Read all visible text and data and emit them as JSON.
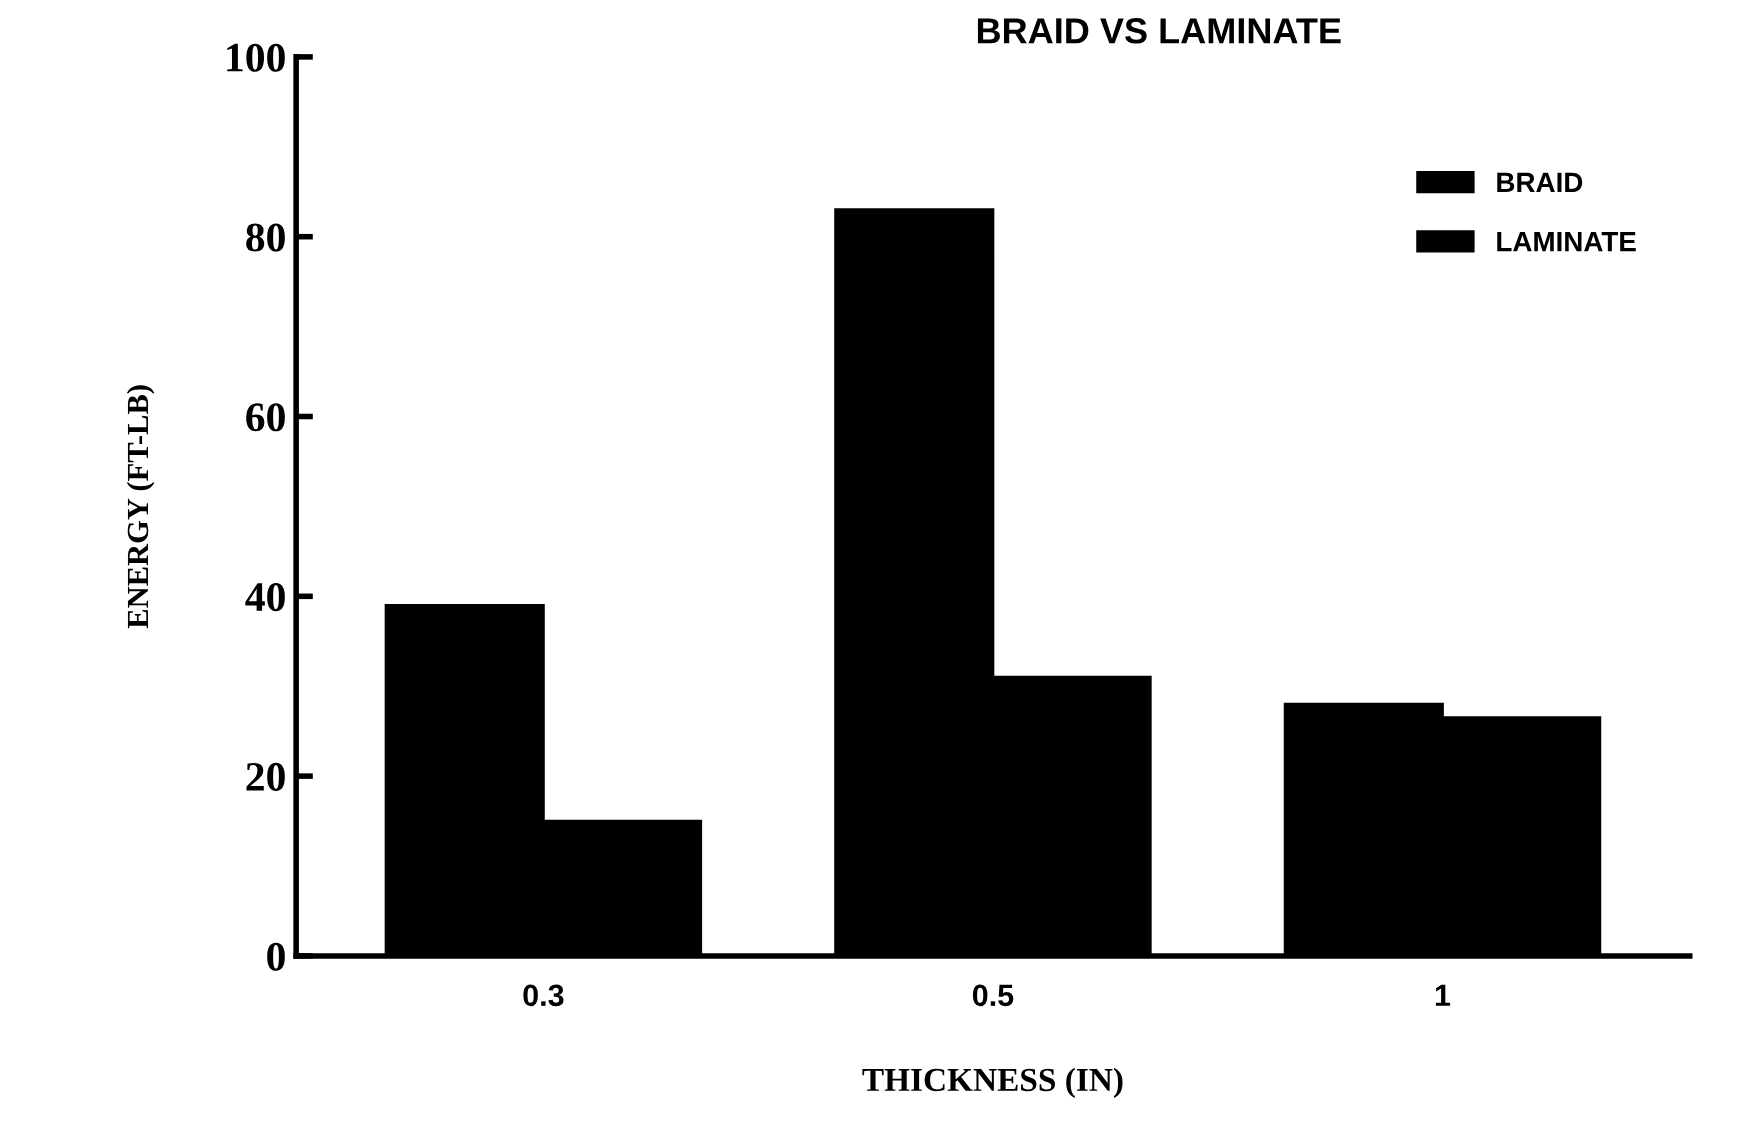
{
  "chart_data": {
    "type": "bar",
    "title": "BRAID VS LAMINATE",
    "xlabel": "THICKNESS (IN)",
    "ylabel": "ENERGY (FT-LB)",
    "categories": [
      "0.3",
      "0.5",
      "1"
    ],
    "series": [
      {
        "name": "BRAID",
        "color": "#000000",
        "values": [
          39,
          83,
          28
        ]
      },
      {
        "name": "LAMINATE",
        "color": "#000000",
        "values": [
          15,
          31,
          26.5
        ]
      }
    ],
    "ylim": [
      0,
      100
    ],
    "yticks": [
      0,
      20,
      40,
      60,
      80,
      100
    ],
    "legend": "top right"
  }
}
